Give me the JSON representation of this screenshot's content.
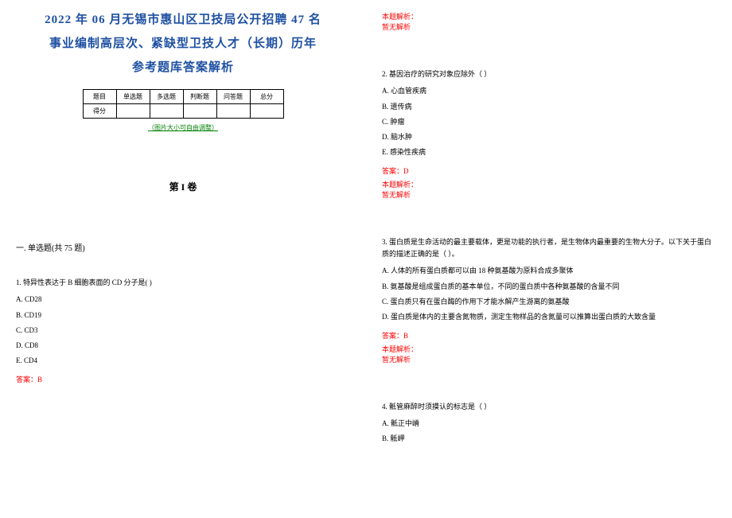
{
  "title_line1": "2022 年 06 月无锡市惠山区卫技局公开招聘 47 名",
  "title_line2": "事业编制高层次、紧缺型卫技人才（长期）历年",
  "title_line3": "参考题库答案解析",
  "table": {
    "row1": [
      "题目",
      "单选题",
      "多选题",
      "判断题",
      "问答题",
      "总分"
    ],
    "row2_head": "得分"
  },
  "img_note": "（图片大小可自由调整）",
  "volume": "第 I 卷",
  "section1": "一. 单选题(共 75 题)",
  "q1": {
    "stem": "1. 特异性表达于 B 细胞表面的 CD 分子是(   )",
    "opts": [
      "A. CD28",
      "B. CD19",
      "C. CD3",
      "D. CD8",
      "E. CD4"
    ],
    "answer": "答案：B"
  },
  "expl_label": "本题解析：",
  "expl_none": "暂无解析",
  "q2": {
    "stem": "2. 基因治疗的研究对象应除外（    ）",
    "opts": [
      "A. 心血管疾病",
      "B. 遗传病",
      "C. 肿瘤",
      "D. 脑水肿",
      "E. 感染性疾病"
    ],
    "answer": "答案：D"
  },
  "q3": {
    "stem": "3. 蛋白质是生命活动的最主要载体，更是功能的执行者，是生物体内最重要的生物大分子。以下关于蛋白质的描述正确的是（ ）。",
    "opts": [
      "A. 人体的所有蛋白质都可以由 18 种氨基酸为原料合成多聚体",
      "B. 氨基酸是组成蛋白质的基本单位，不同的蛋白质中各种氨基酸的含量不同",
      "C. 蛋白质只有在蛋白酶的作用下才能水解产生游离的氨基酸",
      "D. 蛋白质是体内的主要含氮物质，测定生物样品的含氮量可以推算出蛋白质的大致含量"
    ],
    "answer": "答案：B"
  },
  "q4": {
    "stem": "4. 骶管麻醉时须摸认的标志是（    ）",
    "opts": [
      "A. 骶正中嵴",
      "B. 骶岬"
    ]
  }
}
